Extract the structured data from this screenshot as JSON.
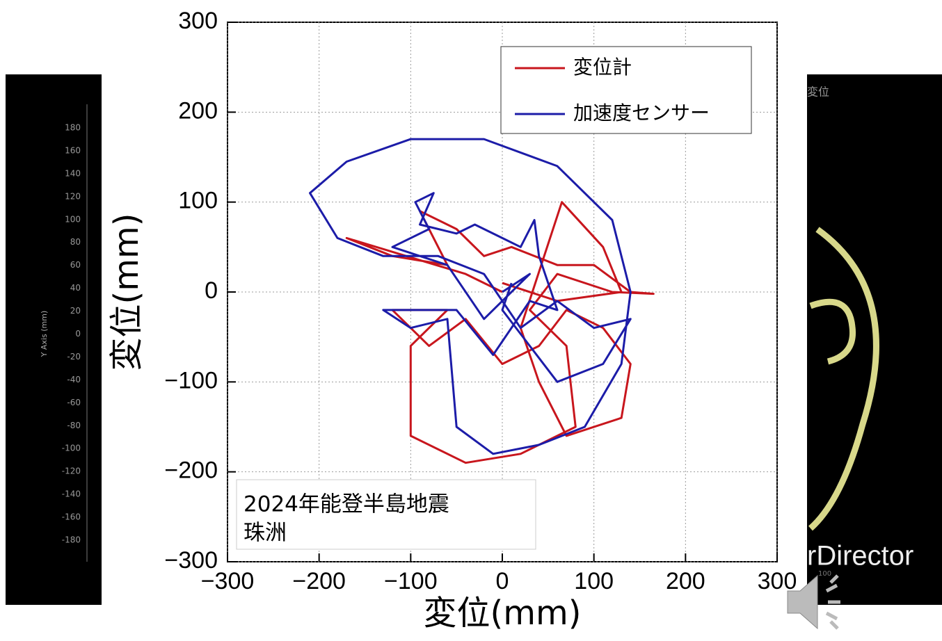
{
  "chart_data": {
    "type": "line",
    "x_label": "変位(mm)",
    "y_label": "変位(mm)",
    "annotation": [
      "2024年能登半島地震",
      "珠洲"
    ],
    "xlim": [
      -300,
      300
    ],
    "ylim": [
      -300,
      300
    ],
    "xticks": [
      {
        "value": -300,
        "label": "−300"
      },
      {
        "value": -200,
        "label": "−200"
      },
      {
        "value": -100,
        "label": "−100"
      },
      0,
      100,
      200,
      300
    ],
    "yticks": [
      {
        "value": -300,
        "label": "−300"
      },
      {
        "value": -200,
        "label": "−200"
      },
      {
        "value": -100,
        "label": "−100"
      },
      0,
      100,
      200,
      300
    ],
    "grid": true,
    "legend": "upper right",
    "series": [
      {
        "name": "変位計",
        "color": "#c8161d",
        "x": [
          0,
          -40,
          -170,
          -120,
          -60,
          -90,
          -50,
          -20,
          10,
          60,
          100,
          140,
          165,
          120,
          60,
          30,
          70,
          80,
          60,
          20,
          -40,
          -100,
          -100,
          -60,
          -120,
          -80,
          -40,
          0,
          40,
          70,
          110,
          140,
          130,
          70,
          40,
          20,
          65,
          110,
          130,
          60,
          0
        ],
        "values": [
          0,
          20,
          60,
          40,
          30,
          90,
          70,
          40,
          50,
          30,
          30,
          0,
          -2,
          0,
          20,
          -20,
          -60,
          -150,
          -160,
          -180,
          -190,
          -160,
          -60,
          -20,
          -20,
          -60,
          -30,
          -80,
          -60,
          -20,
          -40,
          -80,
          -140,
          -160,
          -100,
          -40,
          100,
          50,
          0,
          -10,
          10
        ]
      },
      {
        "name": "加速度センサー",
        "color": "#1c1ca8",
        "x": [
          0,
          30,
          -20,
          -60,
          -120,
          -80,
          -95,
          -75,
          -90,
          -50,
          -30,
          0,
          20,
          35,
          40,
          60,
          30,
          -10,
          -50,
          -130,
          -100,
          -60,
          -50,
          -10,
          40,
          90,
          130,
          140,
          120,
          60,
          -20,
          -100,
          -170,
          -210,
          -180,
          -130,
          -70,
          -20,
          20,
          60,
          100,
          140,
          110,
          60,
          30,
          0,
          10
        ],
        "values": [
          0,
          20,
          -30,
          30,
          50,
          70,
          100,
          110,
          75,
          65,
          75,
          60,
          50,
          80,
          40,
          -20,
          -10,
          -70,
          -20,
          -20,
          -40,
          -30,
          -150,
          -180,
          -170,
          -150,
          -80,
          0,
          80,
          140,
          170,
          170,
          145,
          110,
          60,
          40,
          40,
          20,
          -40,
          -10,
          -40,
          -30,
          -80,
          -100,
          -60,
          -20,
          10
        ]
      }
    ]
  },
  "left_panel": {
    "axis_title": "Y Axis (mm)",
    "ticks": [
      180,
      160,
      140,
      120,
      100,
      80,
      60,
      40,
      20,
      0,
      -20,
      -40,
      -60,
      -80,
      -100,
      -120,
      -140,
      -160,
      -180
    ]
  },
  "right_panel": {
    "title": "変位",
    "watermark": "rDirector",
    "tick": "100"
  }
}
